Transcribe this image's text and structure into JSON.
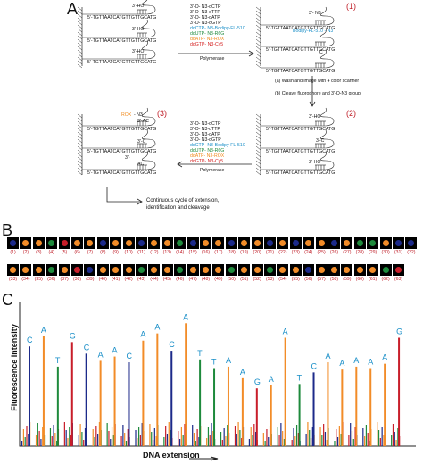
{
  "panels": {
    "a": "A",
    "b": "B",
    "c": "C"
  },
  "panelA": {
    "template_seq": "5'-TGTTAATCATGTTGTTGCATG",
    "stage_numbers": [
      "(1)",
      "(2)",
      "(3)"
    ],
    "hairpin_end_left": "3'-HO",
    "nuc_list_top": [
      "3'-O- N3-dCTP",
      "3'-O- N3-dTTP",
      "3'-O- N3-dATP",
      "3'-O- N3-dGTP",
      "ddCTP- N3-Bodipy-FL-510",
      "ddUTP- N3-R6G",
      "ddATP- N3-ROX",
      "ddGTP- N3-Cy5"
    ],
    "nuc_list_bottom": [
      "3'-O- N3-dCTP",
      "3'-O- N3-dTTP",
      "3'-O- N3-dATP",
      "3'-O- N3-dGTP",
      "ddCTP- N3-Bodipy-FL-510",
      "ddUTP- N3-R6G",
      "ddATP- N3-ROX",
      "ddGTP- N3-Cy5"
    ],
    "polymerase": "Polymerase",
    "stage1_top_label": "3'- N3",
    "stage1_bodipy": "Bodipy-FL-510 - N3",
    "stage1_c": "C",
    "stage1_n3": "3'-",
    "wash_step": "(a) Wash and image with 4 color scanner",
    "cleave_step": "(b) Cleave fluorophore and 3'-O-N3 group",
    "stage2_ho": "3'-HO",
    "stage2_c": "3'-C",
    "stage2_ho2": "3'-HO",
    "stage3_rox": "ROX",
    "stage3_n3": "- N3",
    "stage3_ac": "3'-AC",
    "stage3_c": "3'-C",
    "stage3_n3b": "3'-",
    "stage3_ac2": "AC",
    "cycle_text_1": "Continuous cycle of extension,",
    "cycle_text_2": "identification and cleavage"
  },
  "panelB": {
    "labels": [
      "(1)",
      "(2)",
      "(3)",
      "(4)",
      "(5)",
      "(6)",
      "(7)",
      "(8)",
      "(9)",
      "(10)",
      "(11)",
      "(12)",
      "(13)",
      "(14)",
      "(15)",
      "(16)",
      "(17)",
      "(18)",
      "(19)",
      "(20)",
      "(21)",
      "(22)",
      "(23)",
      "(24)",
      "(25)",
      "(26)",
      "(27)",
      "(28)",
      "(29)",
      "(30)",
      "(31)",
      "(32)",
      "(33)",
      "(34)",
      "(35)",
      "(36)",
      "(37)",
      "(38)",
      "(39)",
      "(40)",
      "(41)",
      "(42)",
      "(43)",
      "(44)",
      "(45)",
      "(46)",
      "(47)",
      "(48)",
      "(49)",
      "(50)",
      "(51)",
      "(52)",
      "(53)",
      "(54)",
      "(55)",
      "(56)",
      "(57)",
      "(58)",
      "(59)",
      "(60)",
      "(61)",
      "(62)",
      "(63)"
    ],
    "colors": [
      "#1c2a8a",
      "#f28c28",
      "#f28c28",
      "#1e8a3c",
      "#c81e2a",
      "#f28c28",
      "#f28c28",
      "#1c2a8a",
      "#f28c28",
      "#f28c28",
      "#1c2a8a",
      "#f28c28",
      "#f28c28",
      "#1e8a3c",
      "#1c2a8a",
      "#f28c28",
      "#f28c28",
      "#1c2a8a",
      "#f28c28",
      "#f28c28",
      "#1c2a8a",
      "#f28c28",
      "#1c2a8a",
      "#f28c28",
      "#f28c28",
      "#1c2a8a",
      "#f28c28",
      "#1e8a3c",
      "#1e8a3c",
      "#f28c28",
      "#1c2a8a",
      "#1c2a8a",
      "#f28c28",
      "#f28c28",
      "#f28c28",
      "#1e8a3c",
      "#f28c28",
      "#c81e2a",
      "#1c2a8a",
      "#f28c28",
      "#f28c28",
      "#f28c28",
      "#1e8a3c",
      "#f28c28",
      "#f28c28",
      "#1e8a3c",
      "#f28c28",
      "#f28c28",
      "#f28c28",
      "#1e8a3c",
      "#f28c28",
      "#f28c28",
      "#1e8a3c",
      "#f28c28",
      "#f28c28",
      "#1c2a8a",
      "#f28c28",
      "#f28c28",
      "#f28c28",
      "#f28c28",
      "#f28c28",
      "#1e8a3c",
      "#c81e2a"
    ]
  },
  "chart_data": {
    "type": "bar",
    "xlabel": "DNA extension",
    "ylabel": "Fluorescence Intensity",
    "base_calls": [
      "C",
      "A",
      "T",
      "G",
      "C",
      "A",
      "A",
      "C",
      "A",
      "A",
      "C",
      "A",
      "T",
      "T",
      "A",
      "A",
      "G",
      "A",
      "A",
      "T",
      "C",
      "A",
      "A",
      "A",
      "A",
      "A",
      "G"
    ],
    "base_colors": {
      "A": "#f28c28",
      "C": "#1c2a8a",
      "G": "#c81e2a",
      "T": "#1e8a3c"
    },
    "peak_values": [
      0.69,
      0.76,
      0.55,
      0.72,
      0.64,
      0.59,
      0.62,
      0.58,
      0.73,
      0.78,
      0.66,
      0.85,
      0.6,
      0.54,
      0.55,
      0.47,
      0.4,
      0.42,
      0.75,
      0.43,
      0.51,
      0.58,
      0.53,
      0.55,
      0.54,
      0.57,
      0.75
    ],
    "ylim": [
      0,
      1
    ]
  }
}
